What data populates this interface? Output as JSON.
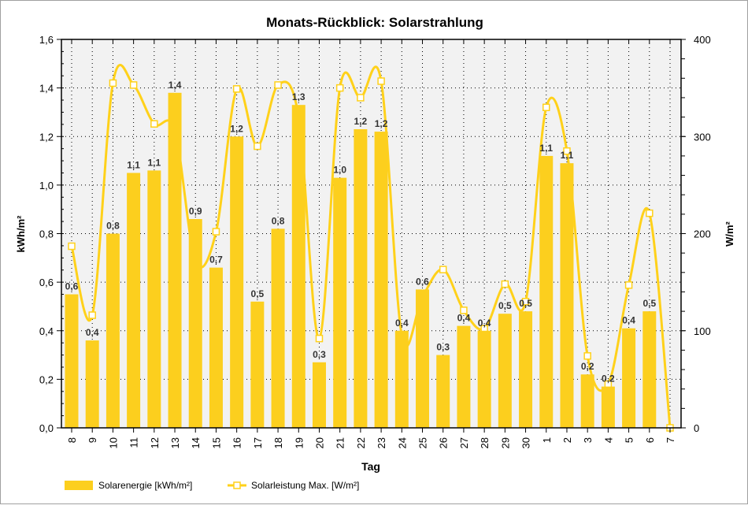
{
  "chart_data": {
    "type": "bar",
    "title": "Monats-Rückblick: Solarstrahlung",
    "xlabel": "Tag",
    "ylabel": "kWh/m²",
    "y2label": "W/m²",
    "ylim": [
      0,
      1.6
    ],
    "y2lim": [
      0,
      400
    ],
    "grid": true,
    "legend_position": "bottom-left",
    "y_ticks": [
      "0,0",
      "0,2",
      "0,4",
      "0,6",
      "0,8",
      "1,0",
      "1,2",
      "1,4",
      "1,6"
    ],
    "y2_ticks": [
      "0",
      "100",
      "200",
      "300",
      "400"
    ],
    "categories": [
      "8",
      "9",
      "10",
      "11",
      "12",
      "13",
      "14",
      "15",
      "16",
      "17",
      "18",
      "19",
      "20",
      "21",
      "22",
      "23",
      "24",
      "25",
      "26",
      "27",
      "28",
      "29",
      "30",
      "1",
      "2",
      "3",
      "4",
      "5",
      "6",
      "7"
    ],
    "series": [
      {
        "name": "Solarenergie [kWh/m²]",
        "type": "bar",
        "axis": "left",
        "color": "#FCCF1E",
        "values": [
          0.55,
          0.36,
          0.8,
          1.05,
          1.06,
          1.38,
          0.86,
          0.66,
          1.2,
          0.52,
          0.82,
          1.33,
          0.27,
          1.03,
          1.23,
          1.22,
          0.4,
          0.57,
          0.3,
          0.42,
          0.4,
          0.47,
          0.48,
          1.12,
          1.09,
          0.22,
          0.17,
          0.41,
          0.48,
          0
        ],
        "labels": [
          "0,6",
          "0,4",
          "0,8",
          "1,1",
          "1,1",
          "1,4",
          "0,9",
          "0,7",
          "1,2",
          "0,5",
          "0,8",
          "1,3",
          "0,3",
          "1,0",
          "1,2",
          "1,2",
          "0,4",
          "0,6",
          "0,3",
          "0,4",
          "0,4",
          "0,5",
          "0,5",
          "1,1",
          "1,1",
          "0,2",
          "0,2",
          "0,4",
          "0,5",
          ""
        ]
      },
      {
        "name": "Solarleistung Max. [W/m²]",
        "type": "line",
        "axis": "right",
        "color": "#FFD11A",
        "values": [
          187,
          116,
          355,
          353,
          313,
          306,
          172,
          202,
          349,
          290,
          353,
          320,
          92,
          350,
          340,
          357,
          95,
          135,
          163,
          121,
          102,
          148,
          130,
          330,
          285,
          74,
          45,
          147,
          221,
          0
        ]
      }
    ]
  }
}
